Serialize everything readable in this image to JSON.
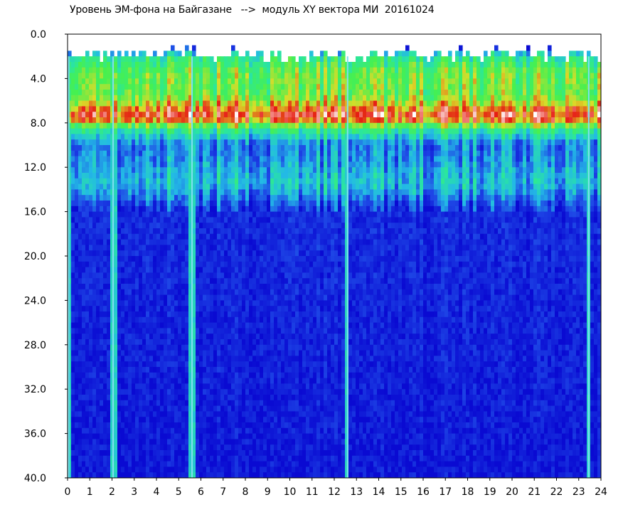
{
  "window": {
    "title": "Уровень ЭМ-фона на Байгазане   -->  модуль XY вектора МИ  20161024"
  },
  "chart_data": {
    "type": "heatmap",
    "title": "Уровень ЭМ-фона на Байгазане   -->  модуль XY вектора МИ  20161024",
    "xlabel": "",
    "ylabel": "",
    "xlim": [
      0,
      24
    ],
    "ylim": [
      40.0,
      0.0
    ],
    "y_inverted": true,
    "x_ticks": [
      "0",
      "1",
      "2",
      "3",
      "4",
      "5",
      "6",
      "7",
      "8",
      "9",
      "10",
      "11",
      "12",
      "13",
      "14",
      "15",
      "16",
      "17",
      "18",
      "19",
      "20",
      "21",
      "22",
      "23",
      "24"
    ],
    "y_ticks": [
      "0.0",
      "4.0",
      "8.0",
      "12.0",
      "16.0",
      "20.0",
      "24.0",
      "28.0",
      "32.0",
      "36.0",
      "40.0"
    ],
    "grid": false,
    "colorscale": [
      "#0a0ad2",
      "#1e46e6",
      "#23b9e6",
      "#2ae6a0",
      "#46f050",
      "#dcdc28",
      "#e61e14",
      "#ffffff"
    ],
    "background_color": "#0612c8",
    "data_gaps_x": [
      0.05,
      2.05,
      5.6,
      12.6,
      23.45
    ],
    "intensity_profile": [
      {
        "y": 1.0,
        "level": 0.0
      },
      {
        "y": 2.0,
        "level": 0.45
      },
      {
        "y": 3.5,
        "level": 0.6
      },
      {
        "y": 5.5,
        "level": 0.6
      },
      {
        "y": 7.5,
        "level": 0.9
      },
      {
        "y": 8.5,
        "level": 0.5
      },
      {
        "y": 10.0,
        "level": 0.2
      },
      {
        "y": 13.5,
        "level": 0.32
      },
      {
        "y": 16.0,
        "level": 0.08
      },
      {
        "y": 40.0,
        "level": 0.03
      }
    ]
  }
}
